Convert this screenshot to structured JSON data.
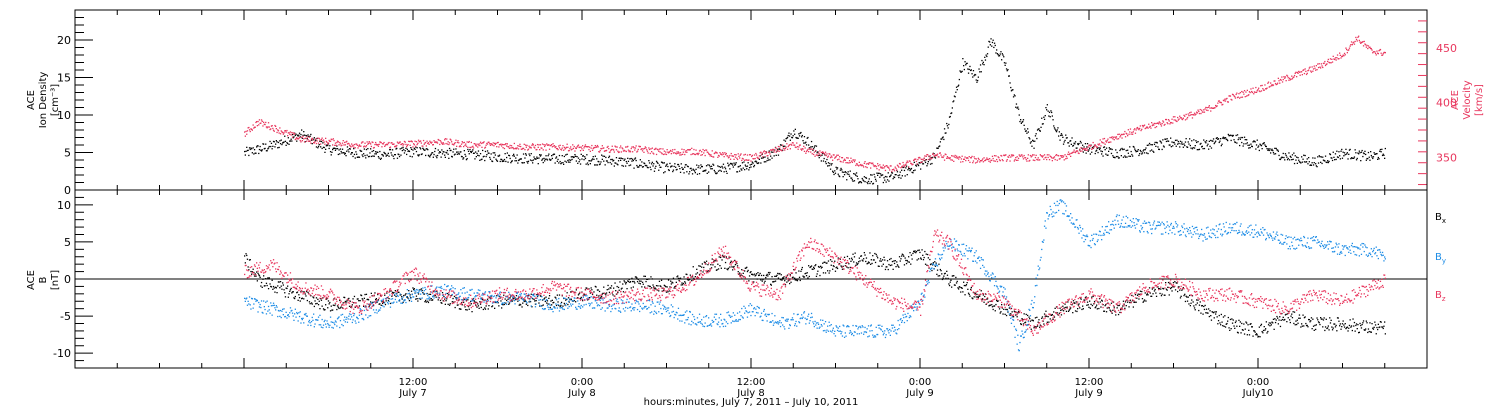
{
  "chart_data": [
    {
      "type": "scatter",
      "panel": "top",
      "ylabel_left": [
        "ACE",
        "Ion Density",
        "[cm⁻³]"
      ],
      "ylabel_right": [
        "ACE",
        "Velocity",
        "[km/s]"
      ],
      "ylim_left": [
        0,
        24
      ],
      "ylim_right": [
        320,
        485
      ],
      "yticks_left": [
        "0",
        "5",
        "10",
        "15",
        "20"
      ],
      "yticks_right": [
        "350",
        "400",
        "450"
      ],
      "colors": {
        "density": "#000000",
        "velocity": "#e8365d"
      },
      "series": [
        {
          "axis": "left",
          "points": [
            [
              0,
              5.0
            ],
            [
              2,
              6.0
            ],
            [
              4,
              7.5
            ],
            [
              6,
              5.5
            ],
            [
              8,
              5.0
            ],
            [
              10,
              4.8
            ],
            [
              12,
              5.2
            ],
            [
              14,
              5.0
            ],
            [
              16,
              4.8
            ],
            [
              18,
              4.5
            ],
            [
              20,
              4.3
            ],
            [
              22,
              4.2
            ],
            [
              24,
              4.2
            ],
            [
              26,
              4.0
            ],
            [
              28,
              3.6
            ],
            [
              30,
              3.0
            ],
            [
              32,
              2.8
            ],
            [
              34,
              2.9
            ],
            [
              36,
              3.5
            ],
            [
              38,
              5.5
            ],
            [
              39,
              8.0
            ],
            [
              40,
              6.5
            ],
            [
              42,
              2.5
            ],
            [
              44,
              1.5
            ],
            [
              46,
              1.8
            ],
            [
              48,
              3.5
            ],
            [
              49,
              4.5
            ],
            [
              50,
              9.0
            ],
            [
              51,
              17.0
            ],
            [
              52,
              15.0
            ],
            [
              53,
              20.0
            ],
            [
              54,
              17.0
            ],
            [
              55,
              10.0
            ],
            [
              56,
              6.0
            ],
            [
              57,
              11.0
            ],
            [
              58,
              7.0
            ],
            [
              60,
              5.5
            ],
            [
              62,
              5.0
            ],
            [
              64,
              5.5
            ],
            [
              66,
              6.5
            ],
            [
              68,
              6.0
            ],
            [
              70,
              7.0
            ],
            [
              72,
              6.0
            ],
            [
              74,
              4.5
            ],
            [
              76,
              3.8
            ],
            [
              78,
              5.0
            ],
            [
              80,
              4.5
            ],
            [
              81,
              5.0
            ]
          ]
        },
        {
          "axis": "right",
          "points": [
            [
              0,
              372
            ],
            [
              1,
              383
            ],
            [
              2,
              378
            ],
            [
              4,
              367
            ],
            [
              6,
              365
            ],
            [
              8,
              362
            ],
            [
              10,
              362
            ],
            [
              12,
              363
            ],
            [
              14,
              365
            ],
            [
              16,
              362
            ],
            [
              18,
              362
            ],
            [
              20,
              360
            ],
            [
              22,
              360
            ],
            [
              24,
              359
            ],
            [
              26,
              358
            ],
            [
              28,
              358
            ],
            [
              30,
              355
            ],
            [
              32,
              356
            ],
            [
              34,
              352
            ],
            [
              36,
              350
            ],
            [
              38,
              358
            ],
            [
              39,
              362
            ],
            [
              40,
              356
            ],
            [
              42,
              350
            ],
            [
              44,
              344
            ],
            [
              46,
              340
            ],
            [
              48,
              348
            ],
            [
              49,
              353
            ],
            [
              50,
              350
            ],
            [
              52,
              348
            ],
            [
              54,
              350
            ],
            [
              56,
              350
            ],
            [
              58,
              350
            ],
            [
              60,
              360
            ],
            [
              62,
              370
            ],
            [
              64,
              378
            ],
            [
              66,
              385
            ],
            [
              68,
              392
            ],
            [
              70,
              405
            ],
            [
              72,
              413
            ],
            [
              74,
              423
            ],
            [
              76,
              432
            ],
            [
              78,
              445
            ],
            [
              79,
              460
            ],
            [
              80,
              448
            ],
            [
              81,
              446
            ]
          ]
        }
      ]
    },
    {
      "type": "scatter",
      "panel": "bottom",
      "ylabel": [
        "ACE",
        "B",
        "[nT]"
      ],
      "ylim": [
        -12,
        12
      ],
      "yticks": [
        "-10",
        "-5",
        "0",
        "5",
        "10"
      ],
      "legend_position": "right",
      "series": [
        {
          "name": "Bx",
          "color": "#000000",
          "points": [
            [
              0,
              3
            ],
            [
              1,
              0
            ],
            [
              3,
              -1.5
            ],
            [
              6,
              -3.5
            ],
            [
              8,
              -3
            ],
            [
              10,
              -2.5
            ],
            [
              12,
              -2
            ],
            [
              14,
              -2.5
            ],
            [
              16,
              -3.5
            ],
            [
              18,
              -3
            ],
            [
              20,
              -2.8
            ],
            [
              22,
              -3
            ],
            [
              24,
              -2
            ],
            [
              26,
              -1.5
            ],
            [
              28,
              0
            ],
            [
              30,
              -1
            ],
            [
              32,
              1.0
            ],
            [
              34,
              2.5
            ],
            [
              36,
              0.5
            ],
            [
              38,
              0
            ],
            [
              40,
              1
            ],
            [
              42,
              2
            ],
            [
              44,
              3
            ],
            [
              46,
              2
            ],
            [
              48,
              3.5
            ],
            [
              50,
              0
            ],
            [
              52,
              -2
            ],
            [
              54,
              -4
            ],
            [
              56,
              -6
            ],
            [
              58,
              -4
            ],
            [
              60,
              -3
            ],
            [
              62,
              -4
            ],
            [
              64,
              -2
            ],
            [
              66,
              -1
            ],
            [
              68,
              -4
            ],
            [
              70,
              -6
            ],
            [
              72,
              -7
            ],
            [
              74,
              -5
            ],
            [
              76,
              -6
            ],
            [
              78,
              -6
            ],
            [
              80,
              -6.5
            ],
            [
              81,
              -6.5
            ]
          ]
        },
        {
          "name": "By",
          "color": "#1e8de6",
          "points": [
            [
              0,
              -3
            ],
            [
              2,
              -4
            ],
            [
              4,
              -5
            ],
            [
              6,
              -6
            ],
            [
              8,
              -5
            ],
            [
              10,
              -3
            ],
            [
              12,
              -2
            ],
            [
              14,
              -1.5
            ],
            [
              16,
              -2
            ],
            [
              18,
              -2.5
            ],
            [
              20,
              -2.5
            ],
            [
              22,
              -3.5
            ],
            [
              24,
              -3
            ],
            [
              26,
              -3.5
            ],
            [
              28,
              -3.5
            ],
            [
              30,
              -4
            ],
            [
              32,
              -5.5
            ],
            [
              34,
              -5.5
            ],
            [
              36,
              -4
            ],
            [
              38,
              -6
            ],
            [
              40,
              -5
            ],
            [
              42,
              -7
            ],
            [
              44,
              -7
            ],
            [
              46,
              -7
            ],
            [
              48,
              -3
            ],
            [
              49,
              2
            ],
            [
              50,
              5
            ],
            [
              52,
              3
            ],
            [
              54,
              -2
            ],
            [
              55,
              -9
            ],
            [
              56,
              -3
            ],
            [
              57,
              9
            ],
            [
              58,
              10
            ],
            [
              60,
              5
            ],
            [
              62,
              8
            ],
            [
              64,
              7
            ],
            [
              66,
              7
            ],
            [
              68,
              6
            ],
            [
              70,
              7
            ],
            [
              72,
              6.5
            ],
            [
              74,
              5
            ],
            [
              76,
              5
            ],
            [
              78,
              4
            ],
            [
              80,
              4
            ],
            [
              81,
              3
            ]
          ]
        },
        {
          "name": "Bz",
          "color": "#e8365d",
          "points": [
            [
              0,
              1
            ],
            [
              2,
              2
            ],
            [
              4,
              -1
            ],
            [
              6,
              -2
            ],
            [
              8,
              -4
            ],
            [
              10,
              -2
            ],
            [
              12,
              1
            ],
            [
              14,
              -2
            ],
            [
              16,
              -3
            ],
            [
              18,
              -2
            ],
            [
              20,
              -2
            ],
            [
              22,
              -1
            ],
            [
              24,
              -2
            ],
            [
              26,
              -2.5
            ],
            [
              28,
              -2
            ],
            [
              30,
              -2
            ],
            [
              32,
              0
            ],
            [
              34,
              4
            ],
            [
              36,
              -1
            ],
            [
              38,
              -2
            ],
            [
              40,
              5
            ],
            [
              42,
              3
            ],
            [
              44,
              0
            ],
            [
              46,
              -3
            ],
            [
              48,
              -4
            ],
            [
              49,
              6
            ],
            [
              50,
              5
            ],
            [
              52,
              -2
            ],
            [
              54,
              -3
            ],
            [
              56,
              -7
            ],
            [
              58,
              -4
            ],
            [
              60,
              -2
            ],
            [
              62,
              -4
            ],
            [
              64,
              -1
            ],
            [
              66,
              0
            ],
            [
              68,
              -2
            ],
            [
              70,
              -2
            ],
            [
              72,
              -3
            ],
            [
              74,
              -4
            ],
            [
              76,
              -2
            ],
            [
              78,
              -3
            ],
            [
              80,
              -1
            ],
            [
              81,
              0
            ]
          ]
        }
      ]
    }
  ],
  "xaxis": {
    "xlim": [
      -12,
      84
    ],
    "ticks": [
      {
        "x": 12,
        "time": "12:00",
        "day": "July 7"
      },
      {
        "x": 24,
        "time": "0:00",
        "day": "July 8"
      },
      {
        "x": 36,
        "time": "12:00",
        "day": "July 8"
      },
      {
        "x": 48,
        "time": "0:00",
        "day": "July 9"
      },
      {
        "x": 60,
        "time": "12:00",
        "day": "July 9"
      },
      {
        "x": 72,
        "time": "0:00",
        "day": "July10"
      }
    ],
    "title": "hours:minutes, July  7, 2011 – July 10, 2011"
  },
  "legend": {
    "bx": "B",
    "bx_sub": "x",
    "by": "B",
    "by_sub": "y",
    "bz": "B",
    "bz_sub": "z"
  }
}
